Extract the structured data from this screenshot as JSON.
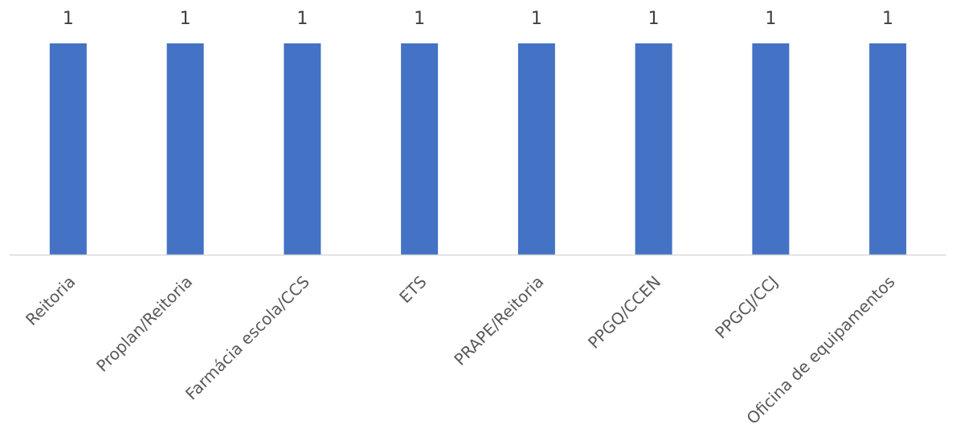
{
  "chart_data": {
    "type": "bar",
    "categories": [
      "Reitoria",
      "Proplan/Reitoria",
      "Farmácia escola/CCS",
      "ETS",
      "PRAPE/Reitoria",
      "PPGQ/CCEN",
      "PPGCJ/CCJ",
      "Oficina de equipamentos"
    ],
    "values": [
      1,
      1,
      1,
      1,
      1,
      1,
      1,
      1
    ],
    "value_labels": [
      "1",
      "1",
      "1",
      "1",
      "1",
      "1",
      "1",
      "1"
    ],
    "ylim": [
      0,
      1
    ],
    "grid": false,
    "legend": "none",
    "bar_color": "#4472C4",
    "axis_color": "#D9D9D9",
    "label_color": "#595959"
  }
}
